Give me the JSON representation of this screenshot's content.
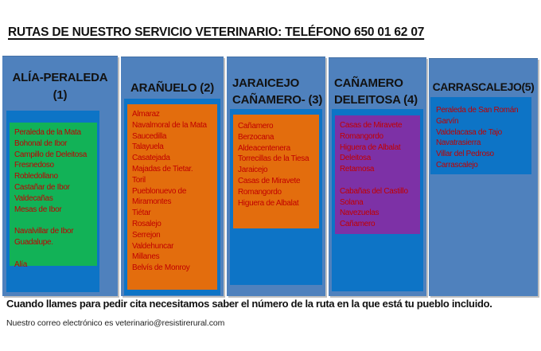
{
  "title": "RUTAS DE NUESTRO SERVICIO VETERINARIO: TELÉFONO 650 01 62 07",
  "footer": {
    "note": "Cuando llames para pedir cita necesitamos saber  el número de la ruta en la que está tu pueblo incluido.",
    "email_line": "Nuestro correo electrónico es veterinario@resistirerural.com"
  },
  "colors": {
    "column_blue": "#4f81bd",
    "inner_blue": "#0d74c6",
    "route1_green": "#12b257",
    "route2_orange": "#e36d0d",
    "route3_orange": "#e36d0d",
    "route4_purple": "#7d31a6",
    "town_text_red": "#c00000"
  },
  "routes": [
    {
      "number": "1",
      "title": "ALÍA-PERALEDA\n(1)",
      "towns": [
        "Peraleda de la Mata",
        "Bohonal de Ibor",
        "Campillo de Deleitosa",
        "Fresnedoso",
        "Robledollano",
        "Castañar de Ibor",
        "Valdecañas",
        "Mesas de Ibor",
        "",
        "Navalvillar de Ibor",
        "Guadalupe.",
        "",
        "Alía"
      ]
    },
    {
      "number": "2",
      "title": "ARAÑUELO (2)",
      "towns": [
        "Almaraz",
        "Navalmoral de la Mata",
        "Saucedilla",
        "Talayuela",
        "Casatejada",
        "Majadas de Tietar.",
        "Toril",
        "Pueblonuevo de",
        "Miramontes",
        "Tiétar",
        "Rosalejo",
        "Serrejon",
        "Valdehuncar",
        "Millanes",
        "Belvís de Monroy"
      ]
    },
    {
      "number": "3",
      "title": "JARAICEJO\nCAÑAMERO- (3)",
      "towns": [
        "Cañamero",
        "Berzocana",
        "Aldeacentenera",
        "Torrecillas de la Tiesa",
        "Jaraicejo",
        "Casas de Miravete",
        "Romangordo",
        "Higuera de Albalat"
      ]
    },
    {
      "number": "4",
      "title": "CAÑAMERO\nDELEITOSA (4)",
      "towns": [
        "Casas de Miravete",
        "Romangordo",
        "Higuera de Albalat",
        "Deleitosa",
        "Retamosa",
        "",
        "Cabañas del Castillo",
        "Solana",
        "Navezuelas",
        "Cañamero"
      ]
    },
    {
      "number": "5",
      "title": "CARRASCALEJO(5)",
      "towns": [
        "Peraleda de San Román",
        "Garvín",
        "Valdelacasa de Tajo",
        "Navatrasierra",
        "Villar del Pedroso",
        "Carrascalejo"
      ]
    }
  ]
}
